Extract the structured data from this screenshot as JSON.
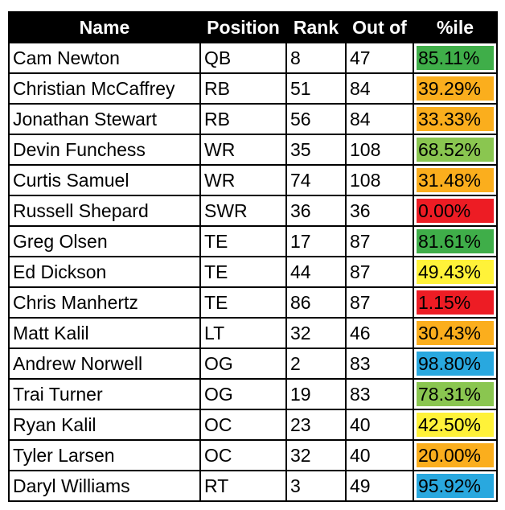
{
  "colors": {
    "dark_green": "#3fae49",
    "light_green": "#8ac650",
    "orange": "#fbae1d",
    "yellow": "#fff239",
    "red": "#ed1c24",
    "blue": "#29a8df"
  },
  "table": {
    "headers": {
      "name": "Name",
      "position": "Position",
      "rank": "Rank",
      "out_of": "Out of",
      "percentile": "%ile"
    },
    "rows": [
      {
        "name": "Cam Newton",
        "position": "QB",
        "rank": "8",
        "out_of": "47",
        "percentile": "85.11%",
        "color": "#3fae49"
      },
      {
        "name": "Christian McCaffrey",
        "position": "RB",
        "rank": "51",
        "out_of": "84",
        "percentile": "39.29%",
        "color": "#fbae1d"
      },
      {
        "name": "Jonathan Stewart",
        "position": "RB",
        "rank": "56",
        "out_of": "84",
        "percentile": "33.33%",
        "color": "#fbae1d"
      },
      {
        "name": "Devin Funchess",
        "position": "WR",
        "rank": "35",
        "out_of": "108",
        "percentile": "68.52%",
        "color": "#8ac650"
      },
      {
        "name": "Curtis Samuel",
        "position": "WR",
        "rank": "74",
        "out_of": "108",
        "percentile": "31.48%",
        "color": "#fbae1d"
      },
      {
        "name": "Russell Shepard",
        "position": "SWR",
        "rank": "36",
        "out_of": "36",
        "percentile": "0.00%",
        "color": "#ed1c24"
      },
      {
        "name": "Greg Olsen",
        "position": "TE",
        "rank": "17",
        "out_of": "87",
        "percentile": "81.61%",
        "color": "#3fae49"
      },
      {
        "name": "Ed Dickson",
        "position": "TE",
        "rank": "44",
        "out_of": "87",
        "percentile": "49.43%",
        "color": "#fff239"
      },
      {
        "name": "Chris Manhertz",
        "position": "TE",
        "rank": "86",
        "out_of": "87",
        "percentile": "1.15%",
        "color": "#ed1c24"
      },
      {
        "name": "Matt Kalil",
        "position": "LT",
        "rank": "32",
        "out_of": "46",
        "percentile": "30.43%",
        "color": "#fbae1d"
      },
      {
        "name": "Andrew Norwell",
        "position": "OG",
        "rank": "2",
        "out_of": "83",
        "percentile": "98.80%",
        "color": "#29a8df"
      },
      {
        "name": "Trai Turner",
        "position": "OG",
        "rank": "19",
        "out_of": "83",
        "percentile": "78.31%",
        "color": "#8ac650"
      },
      {
        "name": "Ryan Kalil",
        "position": "OC",
        "rank": "23",
        "out_of": "40",
        "percentile": "42.50%",
        "color": "#fff239"
      },
      {
        "name": "Tyler Larsen",
        "position": "OC",
        "rank": "32",
        "out_of": "40",
        "percentile": "20.00%",
        "color": "#fbae1d"
      },
      {
        "name": "Daryl Williams",
        "position": "RT",
        "rank": "3",
        "out_of": "49",
        "percentile": "95.92%",
        "color": "#29a8df"
      }
    ]
  }
}
